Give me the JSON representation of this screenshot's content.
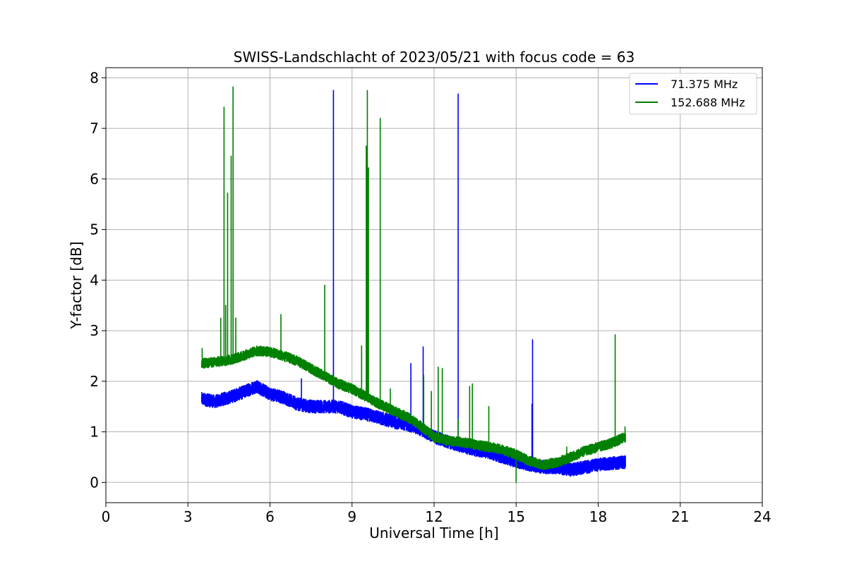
{
  "chart_data": {
    "type": "line",
    "title": "SWISS-Landschlacht of 2023/05/21 with focus code = 63",
    "xlabel": "Universal Time [h]",
    "ylabel": "Y-factor [dB]",
    "xlim": [
      0,
      24
    ],
    "ylim": [
      -0.4,
      8.2
    ],
    "xticks": [
      0,
      3,
      6,
      9,
      12,
      15,
      18,
      21,
      24
    ],
    "yticks": [
      0,
      1,
      2,
      3,
      4,
      5,
      6,
      7,
      8
    ],
    "grid": true,
    "legend_position": "top-right",
    "series": [
      {
        "name": "71.375 MHz",
        "color": "#0000ff",
        "baseline": [
          [
            3.5,
            1.65
          ],
          [
            4.0,
            1.6
          ],
          [
            4.5,
            1.68
          ],
          [
            5.0,
            1.78
          ],
          [
            5.5,
            1.9
          ],
          [
            6.0,
            1.75
          ],
          [
            6.5,
            1.68
          ],
          [
            7.0,
            1.55
          ],
          [
            7.5,
            1.5
          ],
          [
            8.0,
            1.5
          ],
          [
            8.5,
            1.5
          ],
          [
            9.0,
            1.4
          ],
          [
            9.5,
            1.35
          ],
          [
            10.0,
            1.28
          ],
          [
            10.5,
            1.2
          ],
          [
            11.0,
            1.15
          ],
          [
            11.5,
            1.05
          ],
          [
            12.0,
            0.9
          ],
          [
            12.5,
            0.8
          ],
          [
            13.0,
            0.72
          ],
          [
            13.5,
            0.65
          ],
          [
            14.0,
            0.6
          ],
          [
            14.5,
            0.5
          ],
          [
            15.0,
            0.42
          ],
          [
            15.5,
            0.35
          ],
          [
            16.0,
            0.3
          ],
          [
            16.5,
            0.3
          ],
          [
            17.0,
            0.25
          ],
          [
            17.5,
            0.3
          ],
          [
            18.0,
            0.35
          ],
          [
            18.5,
            0.38
          ],
          [
            19.0,
            0.4
          ]
        ],
        "noise": 0.13,
        "spikes": [
          [
            7.15,
            2.05
          ],
          [
            8.32,
            7.75
          ],
          [
            11.15,
            2.35
          ],
          [
            11.6,
            2.68
          ],
          [
            12.88,
            7.68
          ],
          [
            15.6,
            2.82
          ],
          [
            15.58,
            1.55
          ]
        ]
      },
      {
        "name": "152.688 MHz",
        "color": "#008000",
        "baseline": [
          [
            3.5,
            2.35
          ],
          [
            4.0,
            2.38
          ],
          [
            4.5,
            2.42
          ],
          [
            5.0,
            2.5
          ],
          [
            5.5,
            2.6
          ],
          [
            6.0,
            2.58
          ],
          [
            6.5,
            2.5
          ],
          [
            7.0,
            2.4
          ],
          [
            7.5,
            2.25
          ],
          [
            8.0,
            2.1
          ],
          [
            8.5,
            1.95
          ],
          [
            9.0,
            1.85
          ],
          [
            9.5,
            1.7
          ],
          [
            10.0,
            1.55
          ],
          [
            10.5,
            1.42
          ],
          [
            11.0,
            1.3
          ],
          [
            11.5,
            1.12
          ],
          [
            12.0,
            0.9
          ],
          [
            12.5,
            0.82
          ],
          [
            13.0,
            0.8
          ],
          [
            13.5,
            0.75
          ],
          [
            14.0,
            0.7
          ],
          [
            14.5,
            0.65
          ],
          [
            15.0,
            0.55
          ],
          [
            15.5,
            0.42
          ],
          [
            16.0,
            0.35
          ],
          [
            16.5,
            0.4
          ],
          [
            17.0,
            0.5
          ],
          [
            17.5,
            0.62
          ],
          [
            18.0,
            0.7
          ],
          [
            18.5,
            0.78
          ],
          [
            19.0,
            0.9
          ]
        ],
        "noise": 0.1,
        "spikes": [
          [
            3.52,
            2.65
          ],
          [
            4.2,
            3.25
          ],
          [
            4.32,
            7.42
          ],
          [
            4.38,
            3.5
          ],
          [
            4.45,
            5.72
          ],
          [
            4.58,
            6.45
          ],
          [
            4.65,
            7.82
          ],
          [
            4.75,
            3.25
          ],
          [
            6.4,
            3.32
          ],
          [
            8.0,
            3.9
          ],
          [
            9.35,
            2.7
          ],
          [
            9.52,
            6.65
          ],
          [
            9.56,
            7.75
          ],
          [
            9.6,
            6.22
          ],
          [
            10.03,
            7.2
          ],
          [
            10.4,
            1.85
          ],
          [
            11.62,
            2.12
          ],
          [
            11.9,
            1.8
          ],
          [
            12.15,
            2.28
          ],
          [
            12.3,
            2.25
          ],
          [
            12.88,
            1.25
          ],
          [
            13.3,
            1.9
          ],
          [
            13.4,
            1.95
          ],
          [
            14.0,
            1.5
          ],
          [
            15.0,
            0.0
          ],
          [
            16.85,
            0.7
          ],
          [
            18.62,
            2.92
          ],
          [
            18.98,
            1.1
          ]
        ]
      }
    ]
  }
}
